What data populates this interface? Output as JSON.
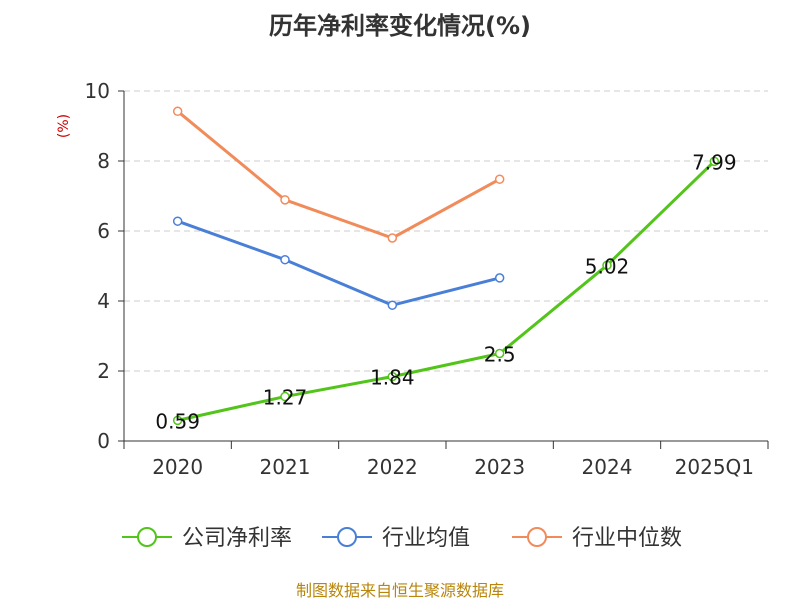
{
  "chart_data": {
    "type": "line",
    "title": "历年净利率变化情况(%)",
    "ylabel": "(%)",
    "categories": [
      "2020",
      "2021",
      "2022",
      "2023",
      "2024",
      "2025Q1"
    ],
    "ylim": [
      0,
      10
    ],
    "yticks": [
      "0",
      "2",
      "4",
      "6",
      "8",
      "10"
    ],
    "grid": true,
    "legend_position": "bottom",
    "series": [
      {
        "name": "公司净利率",
        "color": "#52c41a",
        "values": [
          0.59,
          1.27,
          1.84,
          2.5,
          5.02,
          7.99
        ],
        "labels": [
          "0.59",
          "1.27",
          "1.84",
          "2.5",
          "5.02",
          "7.99"
        ]
      },
      {
        "name": "行业均值",
        "color": "#4a7fd8",
        "values": [
          6.28,
          5.18,
          3.88,
          4.66,
          null,
          null
        ]
      },
      {
        "name": "行业中位数",
        "color": "#f28b5a",
        "values": [
          9.42,
          6.89,
          5.8,
          7.48,
          null,
          null
        ]
      }
    ]
  },
  "source": "制图数据来自恒生聚源数据库"
}
